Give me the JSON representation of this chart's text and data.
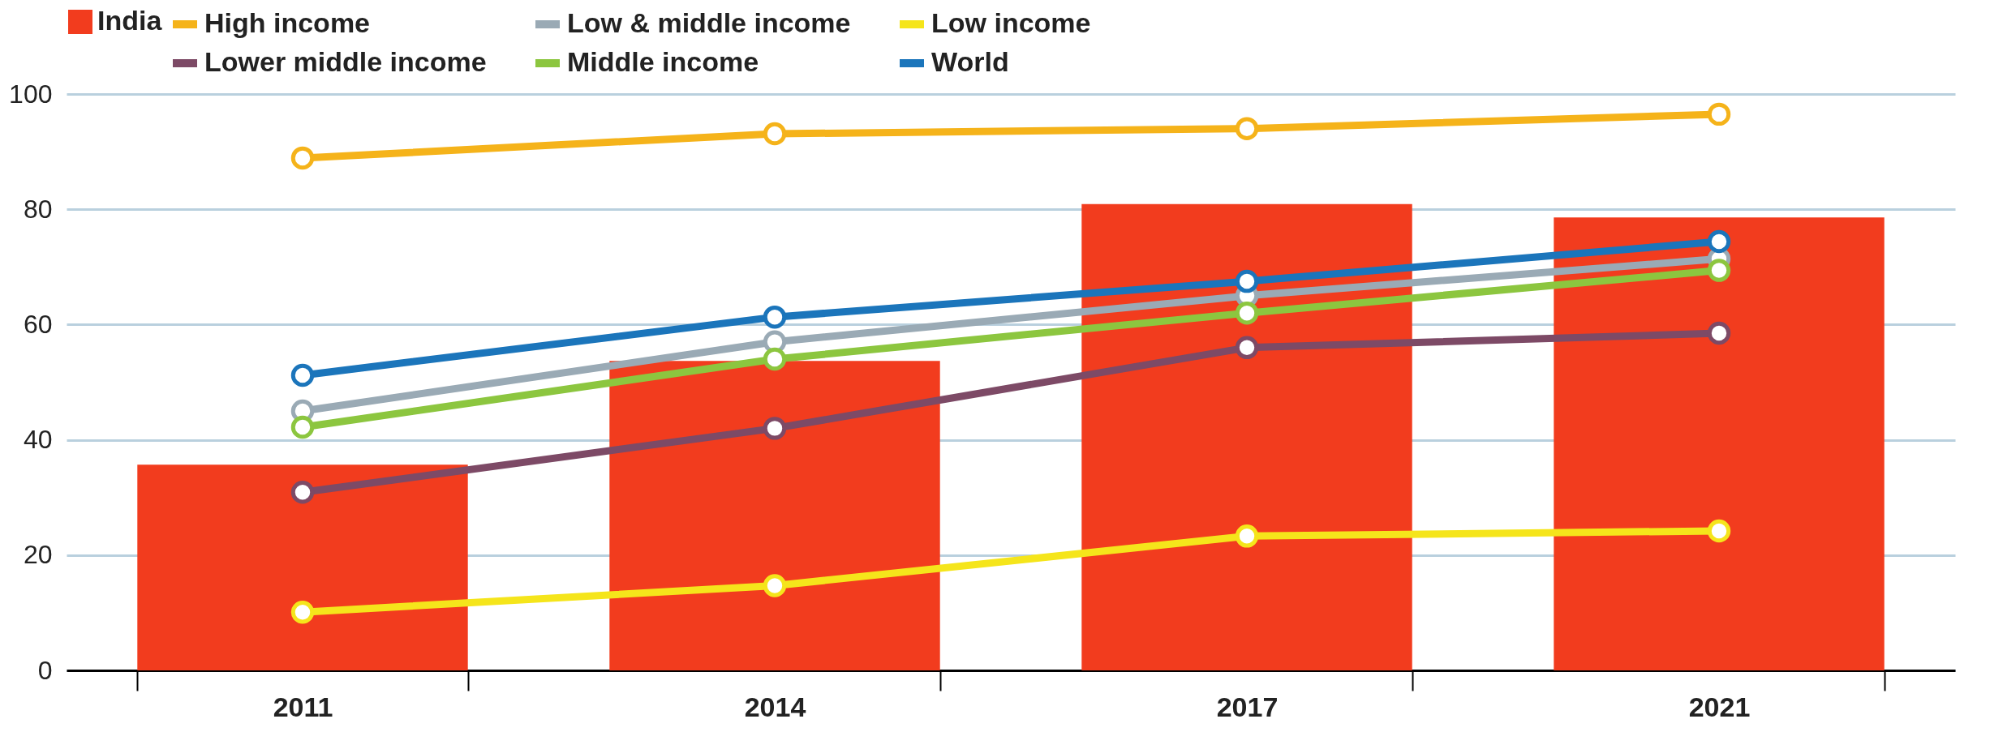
{
  "chart_data": {
    "type": "line",
    "categories": [
      "2011",
      "2014",
      "2017",
      "2021"
    ],
    "series": [
      {
        "name": "India",
        "type": "bar",
        "color": "#f23c1e",
        "values": [
          35.7,
          53.7,
          80.9,
          78.6
        ]
      },
      {
        "name": "High income",
        "color": "#f5b31a",
        "values": [
          88.9,
          93.1,
          94.0,
          96.5
        ]
      },
      {
        "name": "Low & middle income",
        "color": "#9aaab5",
        "values": [
          45.0,
          57.0,
          65.0,
          71.4
        ]
      },
      {
        "name": "Low income",
        "color": "#f5e51b",
        "values": [
          10.1,
          14.7,
          23.3,
          24.2
        ]
      },
      {
        "name": "Lower middle income",
        "color": "#7d4a66",
        "values": [
          30.9,
          42.0,
          56.0,
          58.5
        ]
      },
      {
        "name": "Middle income",
        "color": "#8cc63f",
        "values": [
          42.2,
          54.0,
          62.0,
          69.4
        ]
      },
      {
        "name": "World",
        "color": "#1b75bb",
        "values": [
          51.2,
          61.3,
          67.5,
          74.4
        ]
      }
    ],
    "ylim": [
      0,
      100
    ],
    "yticks": [
      0,
      20,
      40,
      60,
      80,
      100
    ],
    "grid": "y",
    "legend": "top",
    "marker": "circle",
    "line_style": "solid"
  }
}
